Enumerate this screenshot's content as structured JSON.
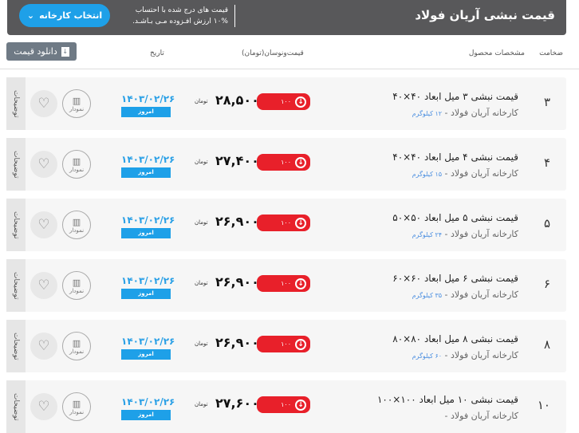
{
  "header": {
    "title": "قیمت نبشی آریان فولاد",
    "note_line1": "قیمت های درج شده با احتساب",
    "note_line2": "۱۰% ارزش افـزوده مـی بـاشـد.",
    "select_factory": "انتخاب کارخانه"
  },
  "toolbar": {
    "download": "دانلود قیمت"
  },
  "columns": {
    "thickness": "ضخامت",
    "specs": "مشخصات محصول",
    "price": "قیمت‌ونوسان(تومان)",
    "date": "تاریخ"
  },
  "colors": {
    "accent": "#1ea0e8",
    "down": "#e8202a",
    "header": "#58585a"
  },
  "rows": [
    {
      "thickness": "۳",
      "name": "قیمت نبشی ۳ میل ابعاد ۴۰×۴۰",
      "factory": "کارخانه آریان فولاد -",
      "weight": "۱۲ کیلوگرم",
      "price": "۲۸,۵۰۰",
      "unit": "تومان",
      "change": "۱۰۰",
      "date": "۱۴۰۳/۰۲/۲۶",
      "today": "امروز",
      "chart": "نمودار",
      "desc": "توضیحات"
    },
    {
      "thickness": "۴",
      "name": "قیمت نبشی ۴ میل ابعاد ۴۰×۴۰",
      "factory": "کارخانه آریان فولاد -",
      "weight": "۱۵ کیلوگرم",
      "price": "۲۷,۴۰۰",
      "unit": "تومان",
      "change": "۱۰۰",
      "date": "۱۴۰۳/۰۲/۲۶",
      "today": "امروز",
      "chart": "نمودار",
      "desc": "توضیحات"
    },
    {
      "thickness": "۵",
      "name": "قیمت نبشی ۵ میل ابعاد ۵۰×۵۰",
      "factory": "کارخانه آریان فولاد -",
      "weight": "۲۴ کیلوگرم",
      "price": "۲۶,۹۰۰",
      "unit": "تومان",
      "change": "۱۰۰",
      "date": "۱۴۰۳/۰۲/۲۶",
      "today": "امروز",
      "chart": "نمودار",
      "desc": "توضیحات"
    },
    {
      "thickness": "۶",
      "name": "قیمت نبشی ۶ میل ابعاد ۶۰×۶۰",
      "factory": "کارخانه آریان فولاد -",
      "weight": "۳۵ کیلوگرم",
      "price": "۲۶,۹۰۰",
      "unit": "تومان",
      "change": "۱۰۰",
      "date": "۱۴۰۳/۰۲/۲۶",
      "today": "امروز",
      "chart": "نمودار",
      "desc": "توضیحات"
    },
    {
      "thickness": "۸",
      "name": "قیمت نبشی ۸ میل ابعاد ۸۰×۸۰",
      "factory": "کارخانه آریان فولاد -",
      "weight": "۶۰ کیلوگرم",
      "price": "۲۶,۹۰۰",
      "unit": "تومان",
      "change": "۱۰۰",
      "date": "۱۴۰۳/۰۲/۲۶",
      "today": "امروز",
      "chart": "نمودار",
      "desc": "توضیحات"
    },
    {
      "thickness": "۱۰",
      "name": "قیمت نبشی ۱۰ میل ابعاد ۱۰۰×۱۰۰",
      "factory": "کارخانه آریان فولاد -",
      "weight": "",
      "price": "۲۷,۶۰۰",
      "unit": "تومان",
      "change": "۱۰۰",
      "date": "۱۴۰۳/۰۲/۲۶",
      "today": "امروز",
      "chart": "نمودار",
      "desc": "توضیحات"
    }
  ]
}
